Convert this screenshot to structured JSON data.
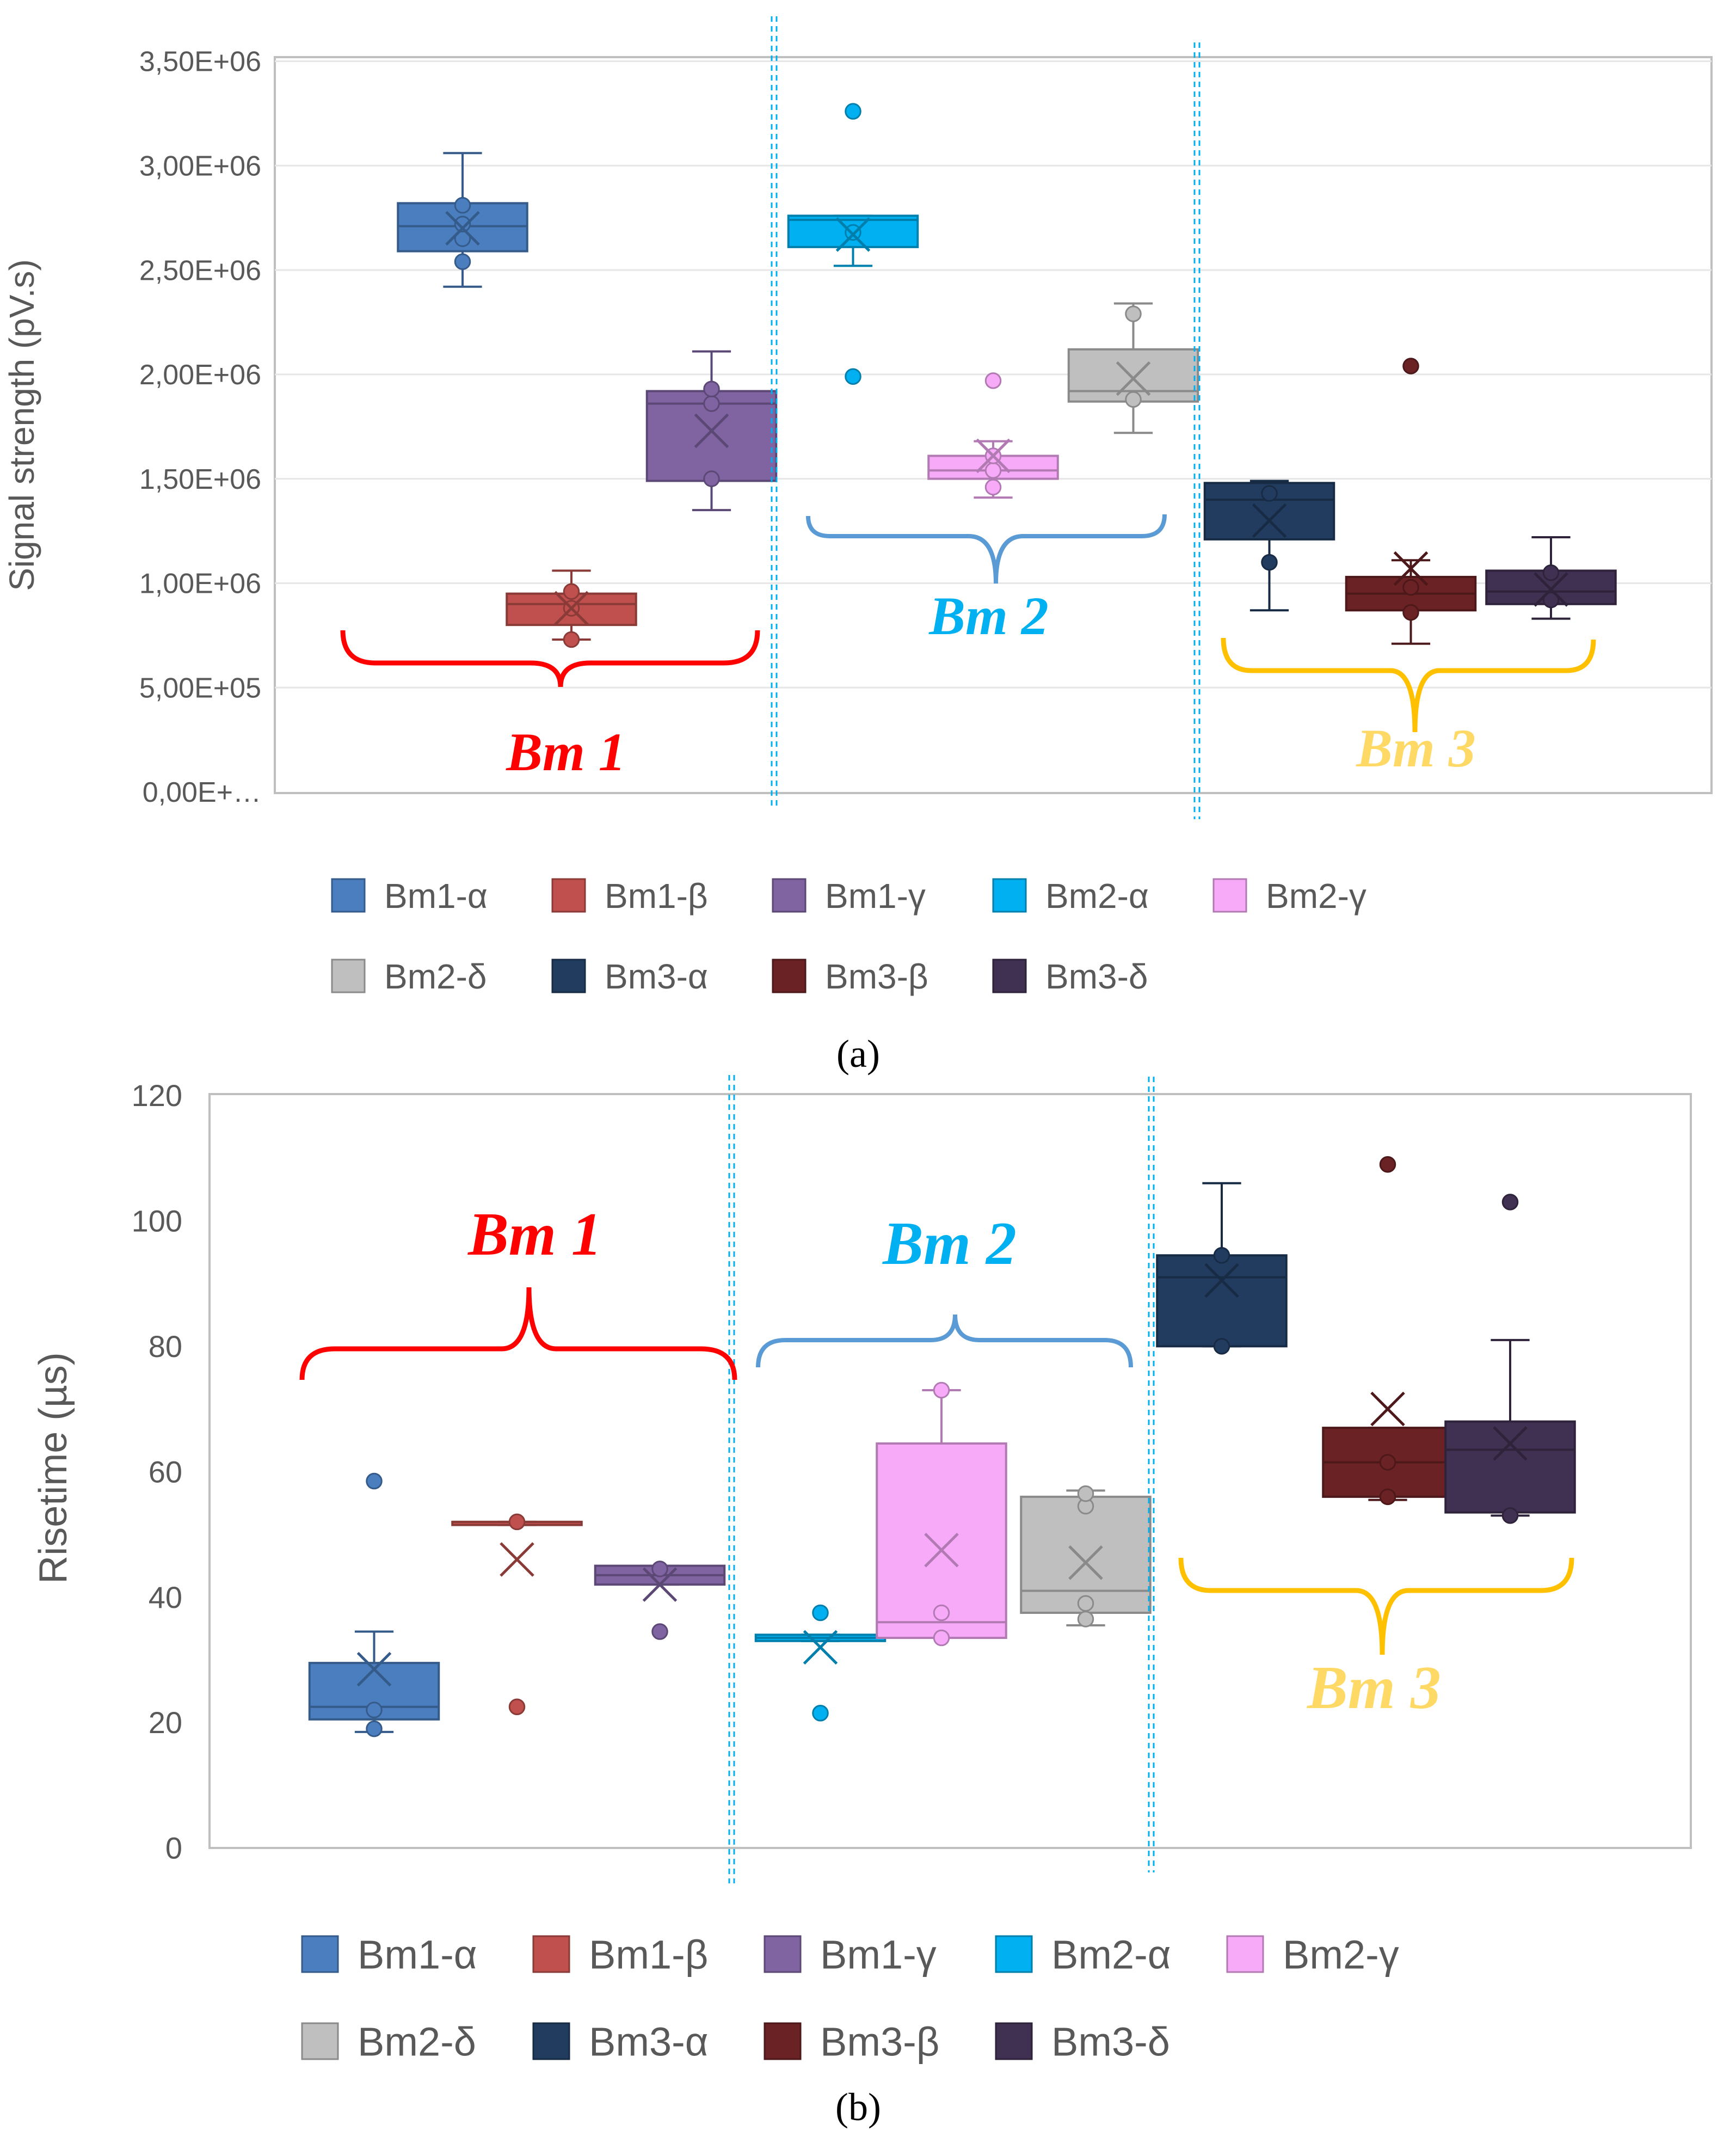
{
  "legend_labels": [
    "Bm1-α",
    "Bm1-β",
    "Bm1-γ",
    "Bm2-α",
    "Bm2-γ",
    "Bm2-δ",
    "Bm3-α",
    "Bm3-β",
    "Bm3-δ"
  ],
  "colors": {
    "Bm1-α": "#4a7ebf",
    "Bm1-β": "#c0504d",
    "Bm1-γ": "#8064a2",
    "Bm2-α": "#00b0f0",
    "Bm2-γ": "#f7aaf7",
    "Bm2-δ": "#bfbfbf",
    "Bm3-α": "#223c60",
    "Bm3-β": "#6b2224",
    "Bm3-δ": "#403152",
    "bm1_brace": "#ff0000",
    "bm2_brace": "#5b9bd5",
    "bm3_brace": "#ffc000",
    "bm1_text": "#ff0000",
    "bm2_text": "#00b0f0",
    "bm3_text": "#ffd966",
    "divider": "#00b0f0"
  },
  "group_labels": [
    "Bm 1",
    "Bm 2",
    "Bm 3"
  ],
  "chart_data": [
    {
      "type": "box",
      "caption": "(a)",
      "ylabel": "Signal strength (pV.s)",
      "ylim": [
        0,
        3500000
      ],
      "yticks": [
        0,
        500000,
        1000000,
        1500000,
        2000000,
        2500000,
        3000000,
        3500000
      ],
      "ytick_labels": [
        "0,00E+…",
        "5,00E+05",
        "1,00E+06",
        "1,50E+06",
        "2,00E+06",
        "2,50E+06",
        "3,00E+06",
        "3,50E+06"
      ],
      "gridlines": true,
      "legend_position": "bottom",
      "series": [
        {
          "name": "Bm1-α",
          "min": 2420000,
          "q1": 2590000,
          "median": 2710000,
          "q3": 2820000,
          "max": 3060000,
          "mean": 2700000,
          "points": [
            2540000,
            2650000,
            2720000,
            2810000
          ],
          "outliers": []
        },
        {
          "name": "Bm1-β",
          "min": 730000,
          "q1": 800000,
          "median": 900000,
          "q3": 950000,
          "max": 1060000,
          "mean": 880000,
          "points": [
            730000,
            880000,
            960000
          ],
          "outliers": []
        },
        {
          "name": "Bm1-γ",
          "min": 1350000,
          "q1": 1490000,
          "median": 1860000,
          "q3": 1920000,
          "max": 2110000,
          "mean": 1730000,
          "points": [
            1500000,
            1860000,
            1930000
          ],
          "outliers": []
        },
        {
          "name": "Bm2-α",
          "min": 2520000,
          "q1": 2610000,
          "median": 2740000,
          "q3": 2760000,
          "max": 2760000,
          "mean": 2670000,
          "points": [
            2680000
          ],
          "outliers": [
            3260000,
            1990000
          ]
        },
        {
          "name": "Bm2-γ",
          "min": 1410000,
          "q1": 1500000,
          "median": 1540000,
          "q3": 1610000,
          "max": 1680000,
          "mean": 1610000,
          "points": [
            1460000,
            1540000,
            1610000
          ],
          "outliers": [
            1970000
          ]
        },
        {
          "name": "Bm2-δ",
          "min": 1720000,
          "q1": 1870000,
          "median": 1920000,
          "q3": 2120000,
          "max": 2340000,
          "mean": 1980000,
          "points": [
            1880000,
            2290000
          ],
          "outliers": []
        },
        {
          "name": "Bm3-α",
          "min": 870000,
          "q1": 1210000,
          "median": 1400000,
          "q3": 1480000,
          "max": 1490000,
          "mean": 1300000,
          "points": [
            1100000,
            1430000
          ],
          "outliers": []
        },
        {
          "name": "Bm3-β",
          "min": 710000,
          "q1": 870000,
          "median": 950000,
          "q3": 1030000,
          "max": 1110000,
          "mean": 1070000,
          "points": [
            860000,
            980000
          ],
          "outliers": [
            2040000
          ]
        },
        {
          "name": "Bm3-δ",
          "min": 830000,
          "q1": 900000,
          "median": 960000,
          "q3": 1060000,
          "max": 1220000,
          "mean": 970000,
          "points": [
            920000,
            1050000
          ],
          "outliers": []
        }
      ]
    },
    {
      "type": "box",
      "caption": "(b)",
      "ylabel": "Risetime (µs)",
      "ylim": [
        0,
        120
      ],
      "yticks": [
        0,
        20,
        40,
        60,
        80,
        100,
        120
      ],
      "ytick_labels": [
        "0",
        "20",
        "40",
        "60",
        "80",
        "100",
        "120"
      ],
      "gridlines": false,
      "legend_position": "bottom",
      "series": [
        {
          "name": "Bm1-α",
          "min": 18.5,
          "q1": 20.5,
          "median": 22.5,
          "q3": 29.5,
          "max": 34.5,
          "mean": 28.5,
          "points": [
            19,
            22
          ],
          "outliers": [
            58.5
          ]
        },
        {
          "name": "Bm1-β",
          "min": 51.5,
          "q1": 51.5,
          "median": 52,
          "q3": 52,
          "max": 52,
          "mean": 46,
          "points": [
            52
          ],
          "outliers": [
            22.5
          ]
        },
        {
          "name": "Bm1-γ",
          "min": 42,
          "q1": 42,
          "median": 43.5,
          "q3": 45,
          "max": 45,
          "mean": 42,
          "points": [
            44.5
          ],
          "outliers": [
            34.5
          ]
        },
        {
          "name": "Bm2-α",
          "min": 33,
          "q1": 33,
          "median": 33.5,
          "q3": 34,
          "max": 34,
          "mean": 32,
          "points": [
            37.5
          ],
          "outliers": [
            21.5
          ]
        },
        {
          "name": "Bm2-γ",
          "min": 33.5,
          "q1": 33.5,
          "median": 36,
          "q3": 64.5,
          "max": 73,
          "mean": 47.5,
          "points": [
            33.5,
            37.5,
            73
          ],
          "outliers": []
        },
        {
          "name": "Bm2-δ",
          "min": 35.5,
          "q1": 37.5,
          "median": 41,
          "q3": 56,
          "max": 57,
          "mean": 45.5,
          "points": [
            36.5,
            39,
            54.5,
            56.5
          ],
          "outliers": []
        },
        {
          "name": "Bm3-α",
          "min": 80,
          "q1": 80,
          "median": 91,
          "q3": 94.5,
          "max": 106,
          "mean": 90.5,
          "points": [
            80,
            94.5
          ],
          "outliers": []
        },
        {
          "name": "Bm3-β",
          "min": 55.5,
          "q1": 56,
          "median": 61.5,
          "q3": 67,
          "max": 67,
          "mean": 70,
          "points": [
            56,
            61.5
          ],
          "outliers": [
            109
          ]
        },
        {
          "name": "Bm3-δ",
          "min": 53,
          "q1": 53.5,
          "median": 63.5,
          "q3": 68,
          "max": 81,
          "mean": 64.5,
          "points": [
            53
          ],
          "outliers": [
            103
          ]
        }
      ]
    }
  ]
}
